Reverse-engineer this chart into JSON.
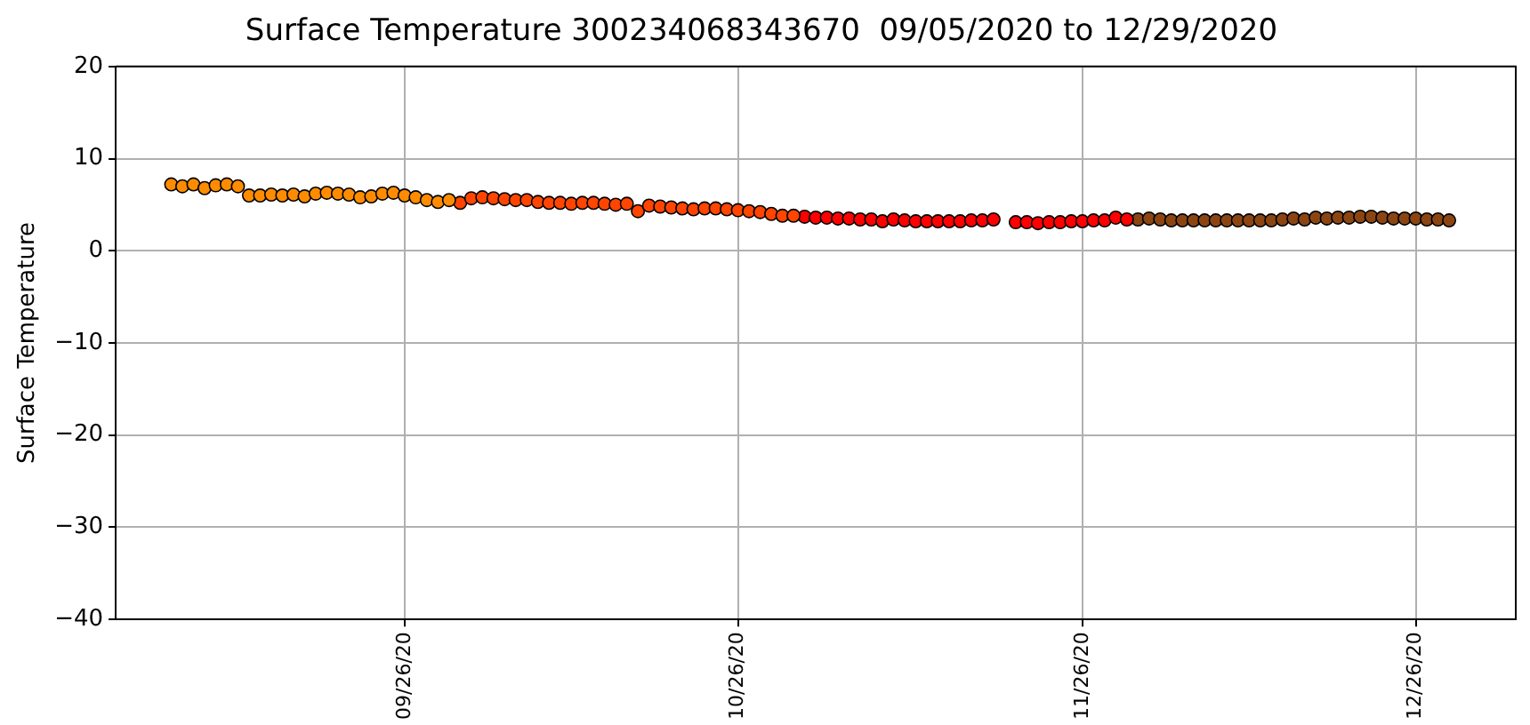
{
  "chart_data": {
    "type": "scatter",
    "title": "Surface Temperature 300234068343670  09/05/2020 to 12/29/2020",
    "ylabel": "Surface Temperature",
    "xlim": [
      "2020-08-31",
      "2021-01-04"
    ],
    "xticks": [
      {
        "value": "2020-09-26",
        "label": "09/26/20"
      },
      {
        "value": "2020-10-26",
        "label": "10/26/20"
      },
      {
        "value": "2020-11-26",
        "label": "11/26/20"
      },
      {
        "value": "2020-12-26",
        "label": "12/26/20"
      }
    ],
    "ylim": [
      -40,
      20
    ],
    "yticks": [
      -40,
      -30,
      -20,
      -10,
      0,
      10,
      20
    ],
    "grid": true,
    "legend": false,
    "marker": "circle",
    "series": [
      {
        "color": "#ff8c00",
        "x": [
          "2020-09-05",
          "2020-09-06",
          "2020-09-07",
          "2020-09-08",
          "2020-09-09",
          "2020-09-10",
          "2020-09-11",
          "2020-09-12",
          "2020-09-13",
          "2020-09-14",
          "2020-09-15",
          "2020-09-16",
          "2020-09-17",
          "2020-09-18",
          "2020-09-19",
          "2020-09-20",
          "2020-09-21",
          "2020-09-22",
          "2020-09-23",
          "2020-09-24",
          "2020-09-25",
          "2020-09-26",
          "2020-09-27",
          "2020-09-28",
          "2020-09-29",
          "2020-09-30"
        ],
        "values": [
          7.2,
          7.0,
          7.2,
          6.8,
          7.1,
          7.2,
          7.0,
          6.0,
          6.0,
          6.1,
          6.0,
          6.1,
          5.9,
          6.2,
          6.3,
          6.2,
          6.1,
          5.8,
          5.9,
          6.2,
          6.3,
          6.0,
          5.8,
          5.5,
          5.3,
          5.5
        ]
      },
      {
        "color": "#ff4500",
        "x": [
          "2020-10-01",
          "2020-10-02",
          "2020-10-03",
          "2020-10-04",
          "2020-10-05",
          "2020-10-06",
          "2020-10-07",
          "2020-10-08",
          "2020-10-09",
          "2020-10-10",
          "2020-10-11",
          "2020-10-12",
          "2020-10-13",
          "2020-10-14",
          "2020-10-15",
          "2020-10-16",
          "2020-10-17",
          "2020-10-18",
          "2020-10-19",
          "2020-10-20",
          "2020-10-21",
          "2020-10-22",
          "2020-10-23",
          "2020-10-24",
          "2020-10-25",
          "2020-10-26",
          "2020-10-27",
          "2020-10-28",
          "2020-10-29",
          "2020-10-30",
          "2020-10-31"
        ],
        "values": [
          5.2,
          5.7,
          5.8,
          5.7,
          5.6,
          5.5,
          5.5,
          5.3,
          5.2,
          5.2,
          5.1,
          5.2,
          5.2,
          5.1,
          5.0,
          5.1,
          4.3,
          4.9,
          4.8,
          4.7,
          4.6,
          4.5,
          4.6,
          4.6,
          4.5,
          4.4,
          4.3,
          4.2,
          4.0,
          3.8,
          3.8
        ]
      },
      {
        "color": "#ff0000",
        "x": [
          "2020-11-01",
          "2020-11-02",
          "2020-11-03",
          "2020-11-04",
          "2020-11-05",
          "2020-11-06",
          "2020-11-07",
          "2020-11-08",
          "2020-11-09",
          "2020-11-10",
          "2020-11-11",
          "2020-11-12",
          "2020-11-13",
          "2020-11-14",
          "2020-11-15",
          "2020-11-16",
          "2020-11-17",
          "2020-11-18",
          "2020-11-19",
          "2020-11-20",
          "2020-11-21",
          "2020-11-22",
          "2020-11-23",
          "2020-11-24",
          "2020-11-25",
          "2020-11-26",
          "2020-11-27",
          "2020-11-28",
          "2020-11-29",
          "2020-11-30"
        ],
        "values": [
          3.7,
          3.6,
          3.6,
          3.5,
          3.5,
          3.4,
          3.4,
          3.2,
          3.4,
          3.3,
          3.2,
          3.2,
          3.2,
          3.2,
          3.2,
          3.3,
          3.3,
          3.4,
          null,
          3.1,
          3.1,
          3.0,
          3.1,
          3.1,
          3.2,
          3.2,
          3.3,
          3.3,
          3.6,
          3.4
        ]
      },
      {
        "color": "#8b4513",
        "x": [
          "2020-12-01",
          "2020-12-02",
          "2020-12-03",
          "2020-12-04",
          "2020-12-05",
          "2020-12-06",
          "2020-12-07",
          "2020-12-08",
          "2020-12-09",
          "2020-12-10",
          "2020-12-11",
          "2020-12-12",
          "2020-12-13",
          "2020-12-14",
          "2020-12-15",
          "2020-12-16",
          "2020-12-17",
          "2020-12-18",
          "2020-12-19",
          "2020-12-20",
          "2020-12-21",
          "2020-12-22",
          "2020-12-23",
          "2020-12-24",
          "2020-12-25",
          "2020-12-26",
          "2020-12-27",
          "2020-12-28",
          "2020-12-29"
        ],
        "values": [
          3.4,
          3.5,
          3.4,
          3.3,
          3.3,
          3.3,
          3.3,
          3.3,
          3.3,
          3.3,
          3.3,
          3.3,
          3.3,
          3.4,
          3.5,
          3.4,
          3.6,
          3.5,
          3.6,
          3.6,
          3.7,
          3.7,
          3.6,
          3.5,
          3.5,
          3.5,
          3.4,
          3.4,
          3.3
        ]
      }
    ]
  }
}
